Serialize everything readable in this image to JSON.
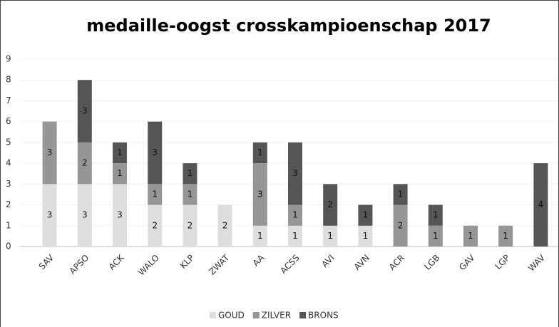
{
  "chart_data": {
    "type": "bar",
    "stacked": true,
    "title": "medaille-oogst  crosskampioenschap  2017",
    "categories": [
      "SAV",
      "APSO",
      "ACK",
      "WALO",
      "KLP",
      "ZWAT",
      "AA",
      "ACSS",
      "AVI",
      "AVN",
      "ACR",
      "LGB",
      "GAV",
      "LGP",
      "WAV"
    ],
    "series": [
      {
        "name": "GOUD",
        "color": "#dedede",
        "values": [
          3,
          3,
          3,
          2,
          2,
          2,
          1,
          1,
          1,
          1,
          0,
          0,
          0,
          0,
          0
        ]
      },
      {
        "name": "ZILVER",
        "color": "#969696",
        "values": [
          3,
          2,
          1,
          1,
          1,
          0,
          3,
          1,
          0,
          0,
          2,
          1,
          1,
          1,
          0
        ]
      },
      {
        "name": "BRONS",
        "color": "#555555",
        "values": [
          0,
          3,
          1,
          3,
          1,
          0,
          1,
          3,
          2,
          1,
          1,
          1,
          0,
          0,
          4
        ]
      }
    ],
    "ylim": [
      0,
      9
    ],
    "yticks": [
      0,
      1,
      2,
      3,
      4,
      5,
      6,
      7,
      8,
      9
    ],
    "legend": "bottom"
  }
}
